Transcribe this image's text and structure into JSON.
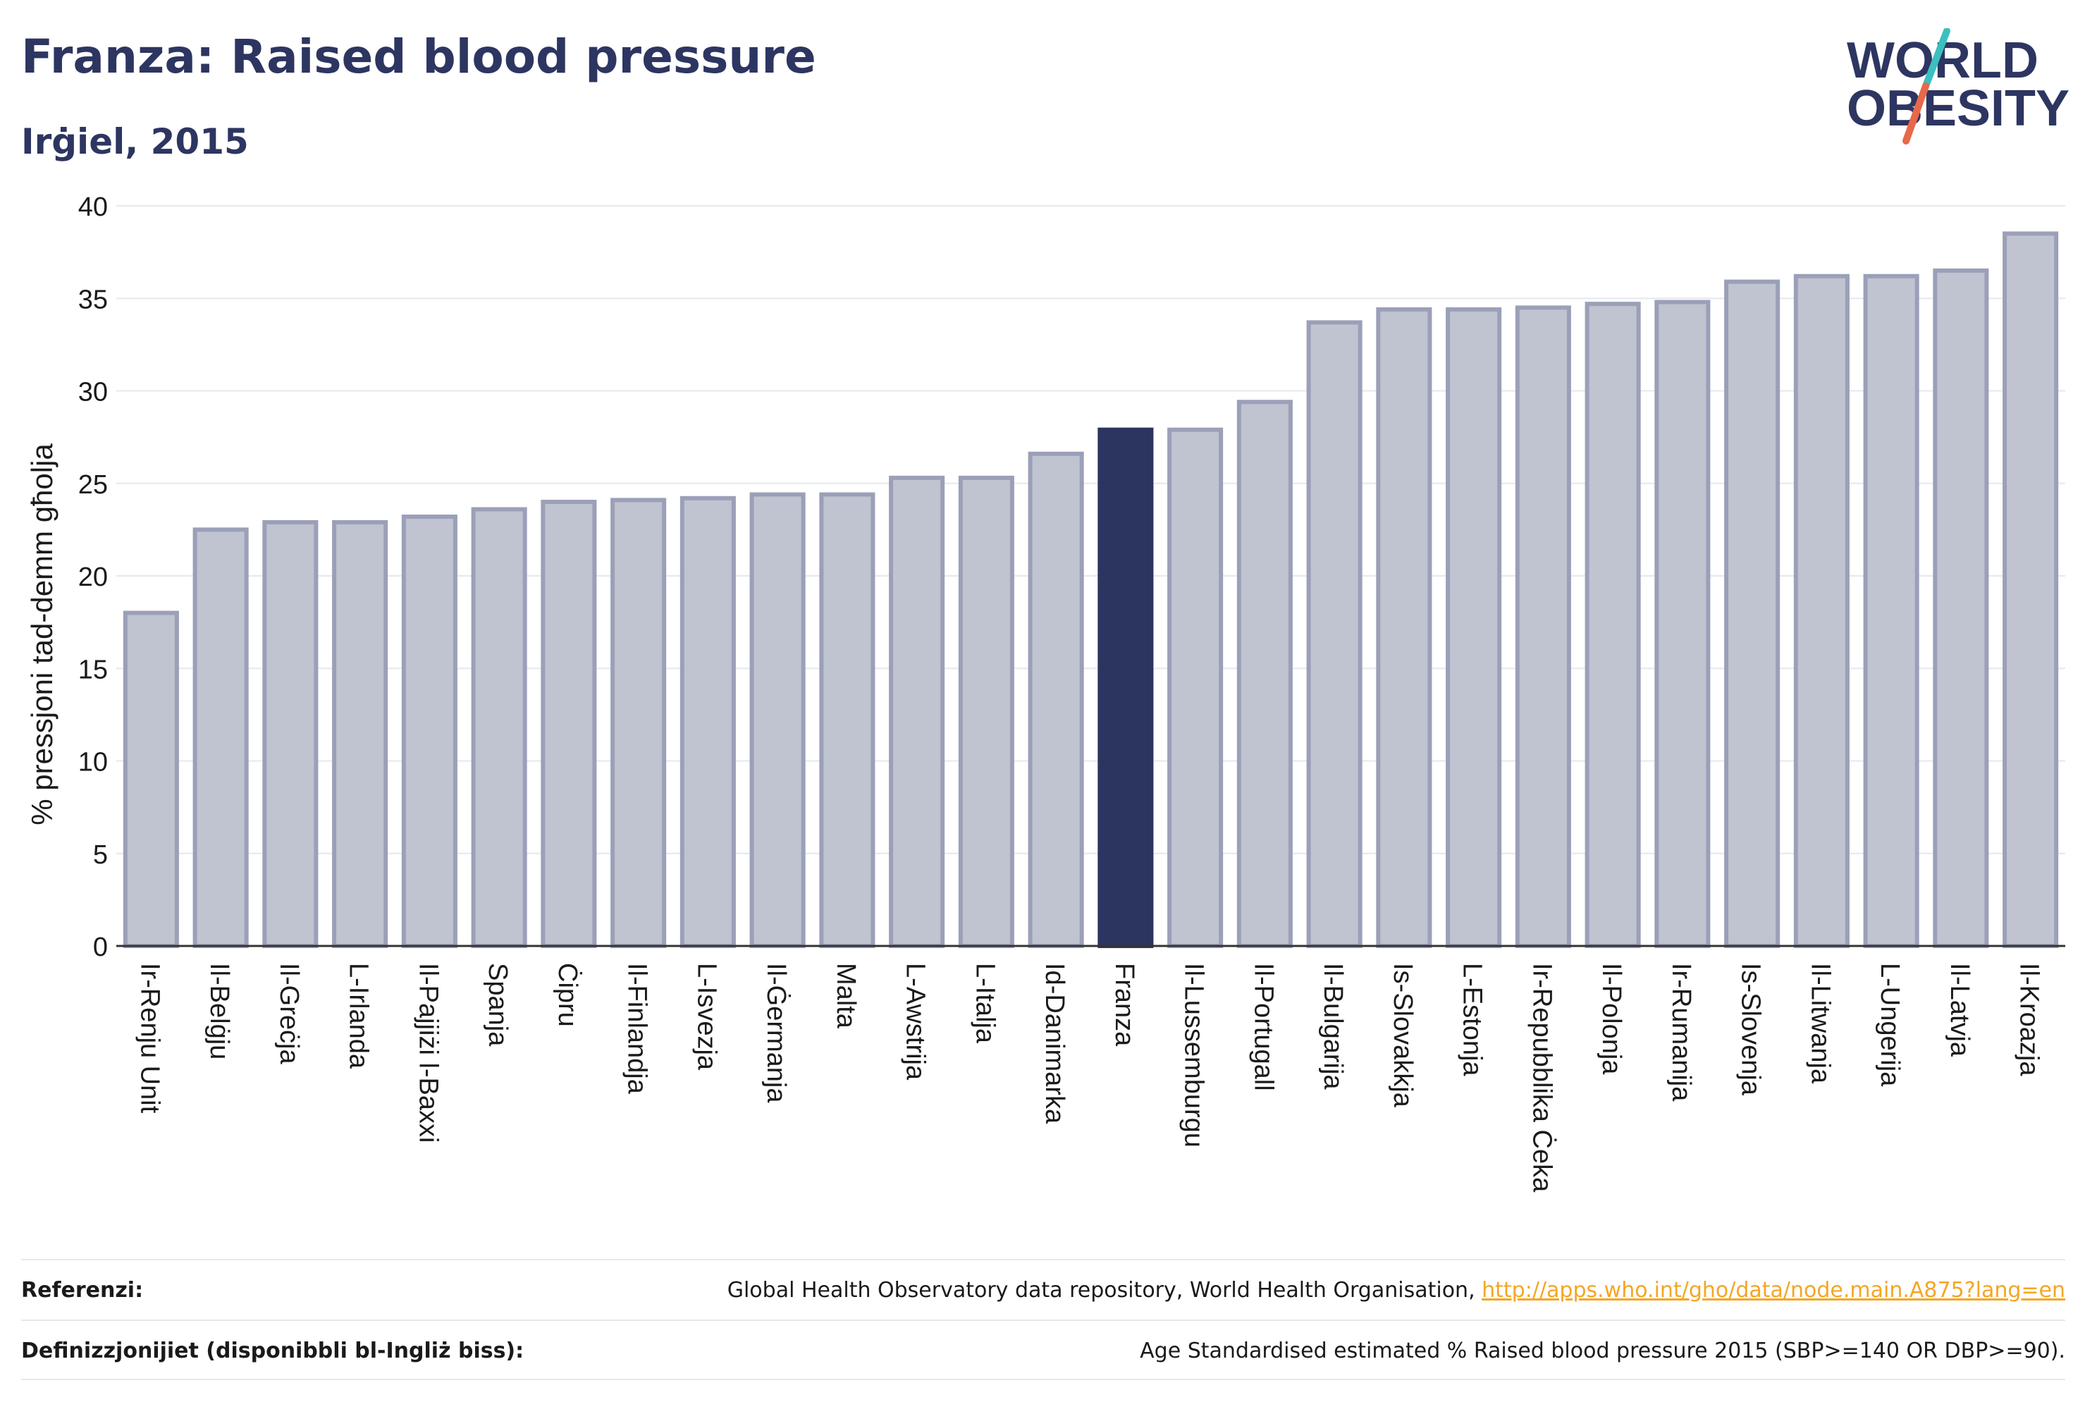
{
  "header": {
    "title": "Franza: Raised blood pressure",
    "subtitle": "Irġiel, 2015"
  },
  "logo": {
    "line1": "WORLD",
    "line2": "OBESITY",
    "slash_colors": [
      "#3bbfbf",
      "#e8684a"
    ]
  },
  "chart_data": {
    "type": "bar",
    "ylabel": "% pressjoni tad-demm għolja",
    "ylim": [
      0,
      40
    ],
    "yticks": [
      0,
      5,
      10,
      15,
      20,
      25,
      30,
      35,
      40
    ],
    "grid": true,
    "highlight": "Franza",
    "highlight_color": "#2b3560",
    "bar_color": "#c0c3d0",
    "bar_edge_color": "#9ba0b8",
    "categories": [
      "Ir-Renju Unit",
      "Il-Belġju",
      "Il-Greċja",
      "L-Irlanda",
      "Il-Pajjiżi l-Baxxi",
      "Spanja",
      "Ċipru",
      "Il-Finlandja",
      "L-Isvezja",
      "Il-Ġermanja",
      "Malta",
      "L-Awstrija",
      "L-Italja",
      "Id-Danimarka",
      "Franza",
      "Il-Lussemburgu",
      "Il-Portugall",
      "Il-Bulgarija",
      "Is-Slovakkja",
      "L-Estonja",
      "Ir-Repubblika Ċeka",
      "Il-Polonja",
      "Ir-Rumanija",
      "Is-Slovenja",
      "Il-Litwanja",
      "L-Ungerija",
      "Il-Latvja",
      "Il-Kroazja"
    ],
    "values": [
      18.0,
      22.5,
      22.9,
      22.9,
      23.2,
      23.6,
      24.0,
      24.1,
      24.2,
      24.4,
      24.4,
      25.3,
      25.3,
      26.6,
      27.9,
      27.9,
      29.4,
      33.7,
      34.4,
      34.4,
      34.5,
      34.7,
      34.8,
      35.9,
      36.2,
      36.2,
      36.5,
      38.5
    ]
  },
  "footer": {
    "sources_label": "Referenzi:",
    "sources_text": "Global Health Observatory data repository, World Health Organisation, ",
    "sources_link": "http://apps.who.int/gho/data/node.main.A875?lang=en",
    "definitions_label": "Definizzjonijiet (disponibbli bl-Ingliż biss):",
    "definitions_text": "Age Standardised estimated % Raised blood pressure 2015 (SBP>=140 OR DBP>=90)."
  }
}
